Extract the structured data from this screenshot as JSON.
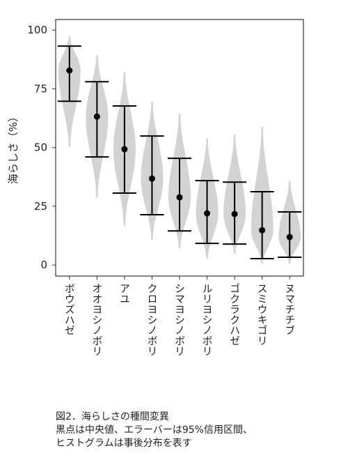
{
  "chart_data": {
    "type": "violin",
    "y_label": "海らしさ（%）",
    "categories": [
      "ボウズハゼ",
      "オオヨシノボリ",
      "アユ",
      "クロヨシノボリ",
      "シマヨシノボリ",
      "ルリヨシノボリ",
      "ゴクラクハゼ",
      "スミウキゴリ",
      "ヌマチチブ"
    ],
    "median": [
      82.8,
      63.2,
      49.3,
      36.8,
      28.8,
      22.0,
      21.7,
      14.8,
      11.9
    ],
    "lower": [
      69.7,
      46.0,
      30.6,
      21.4,
      14.5,
      9.2,
      8.9,
      2.7,
      3.3
    ],
    "upper": [
      93.2,
      78.0,
      67.7,
      54.9,
      45.4,
      35.9,
      35.3,
      31.2,
      22.6
    ],
    "violin_min": [
      50.1,
      28.5,
      16.6,
      10.7,
      7.1,
      2.7,
      4.7,
      0.6,
      0.6
    ],
    "violin_max": [
      97.3,
      89.3,
      82.2,
      69.7,
      64.4,
      54.0,
      55.8,
      58.8,
      35.9
    ],
    "violin_color": "#d3d3d3",
    "color": "#000000",
    "ylim": [
      -4.7,
      104.5
    ],
    "yticks": [
      0,
      25,
      50,
      75,
      100
    ],
    "grid": false,
    "caption": [
      "図2．海らしさの種間変異",
      "黒点は中央値、エラーバーは95%信用区間、",
      "ヒストグラムは事後分布を表す"
    ]
  }
}
